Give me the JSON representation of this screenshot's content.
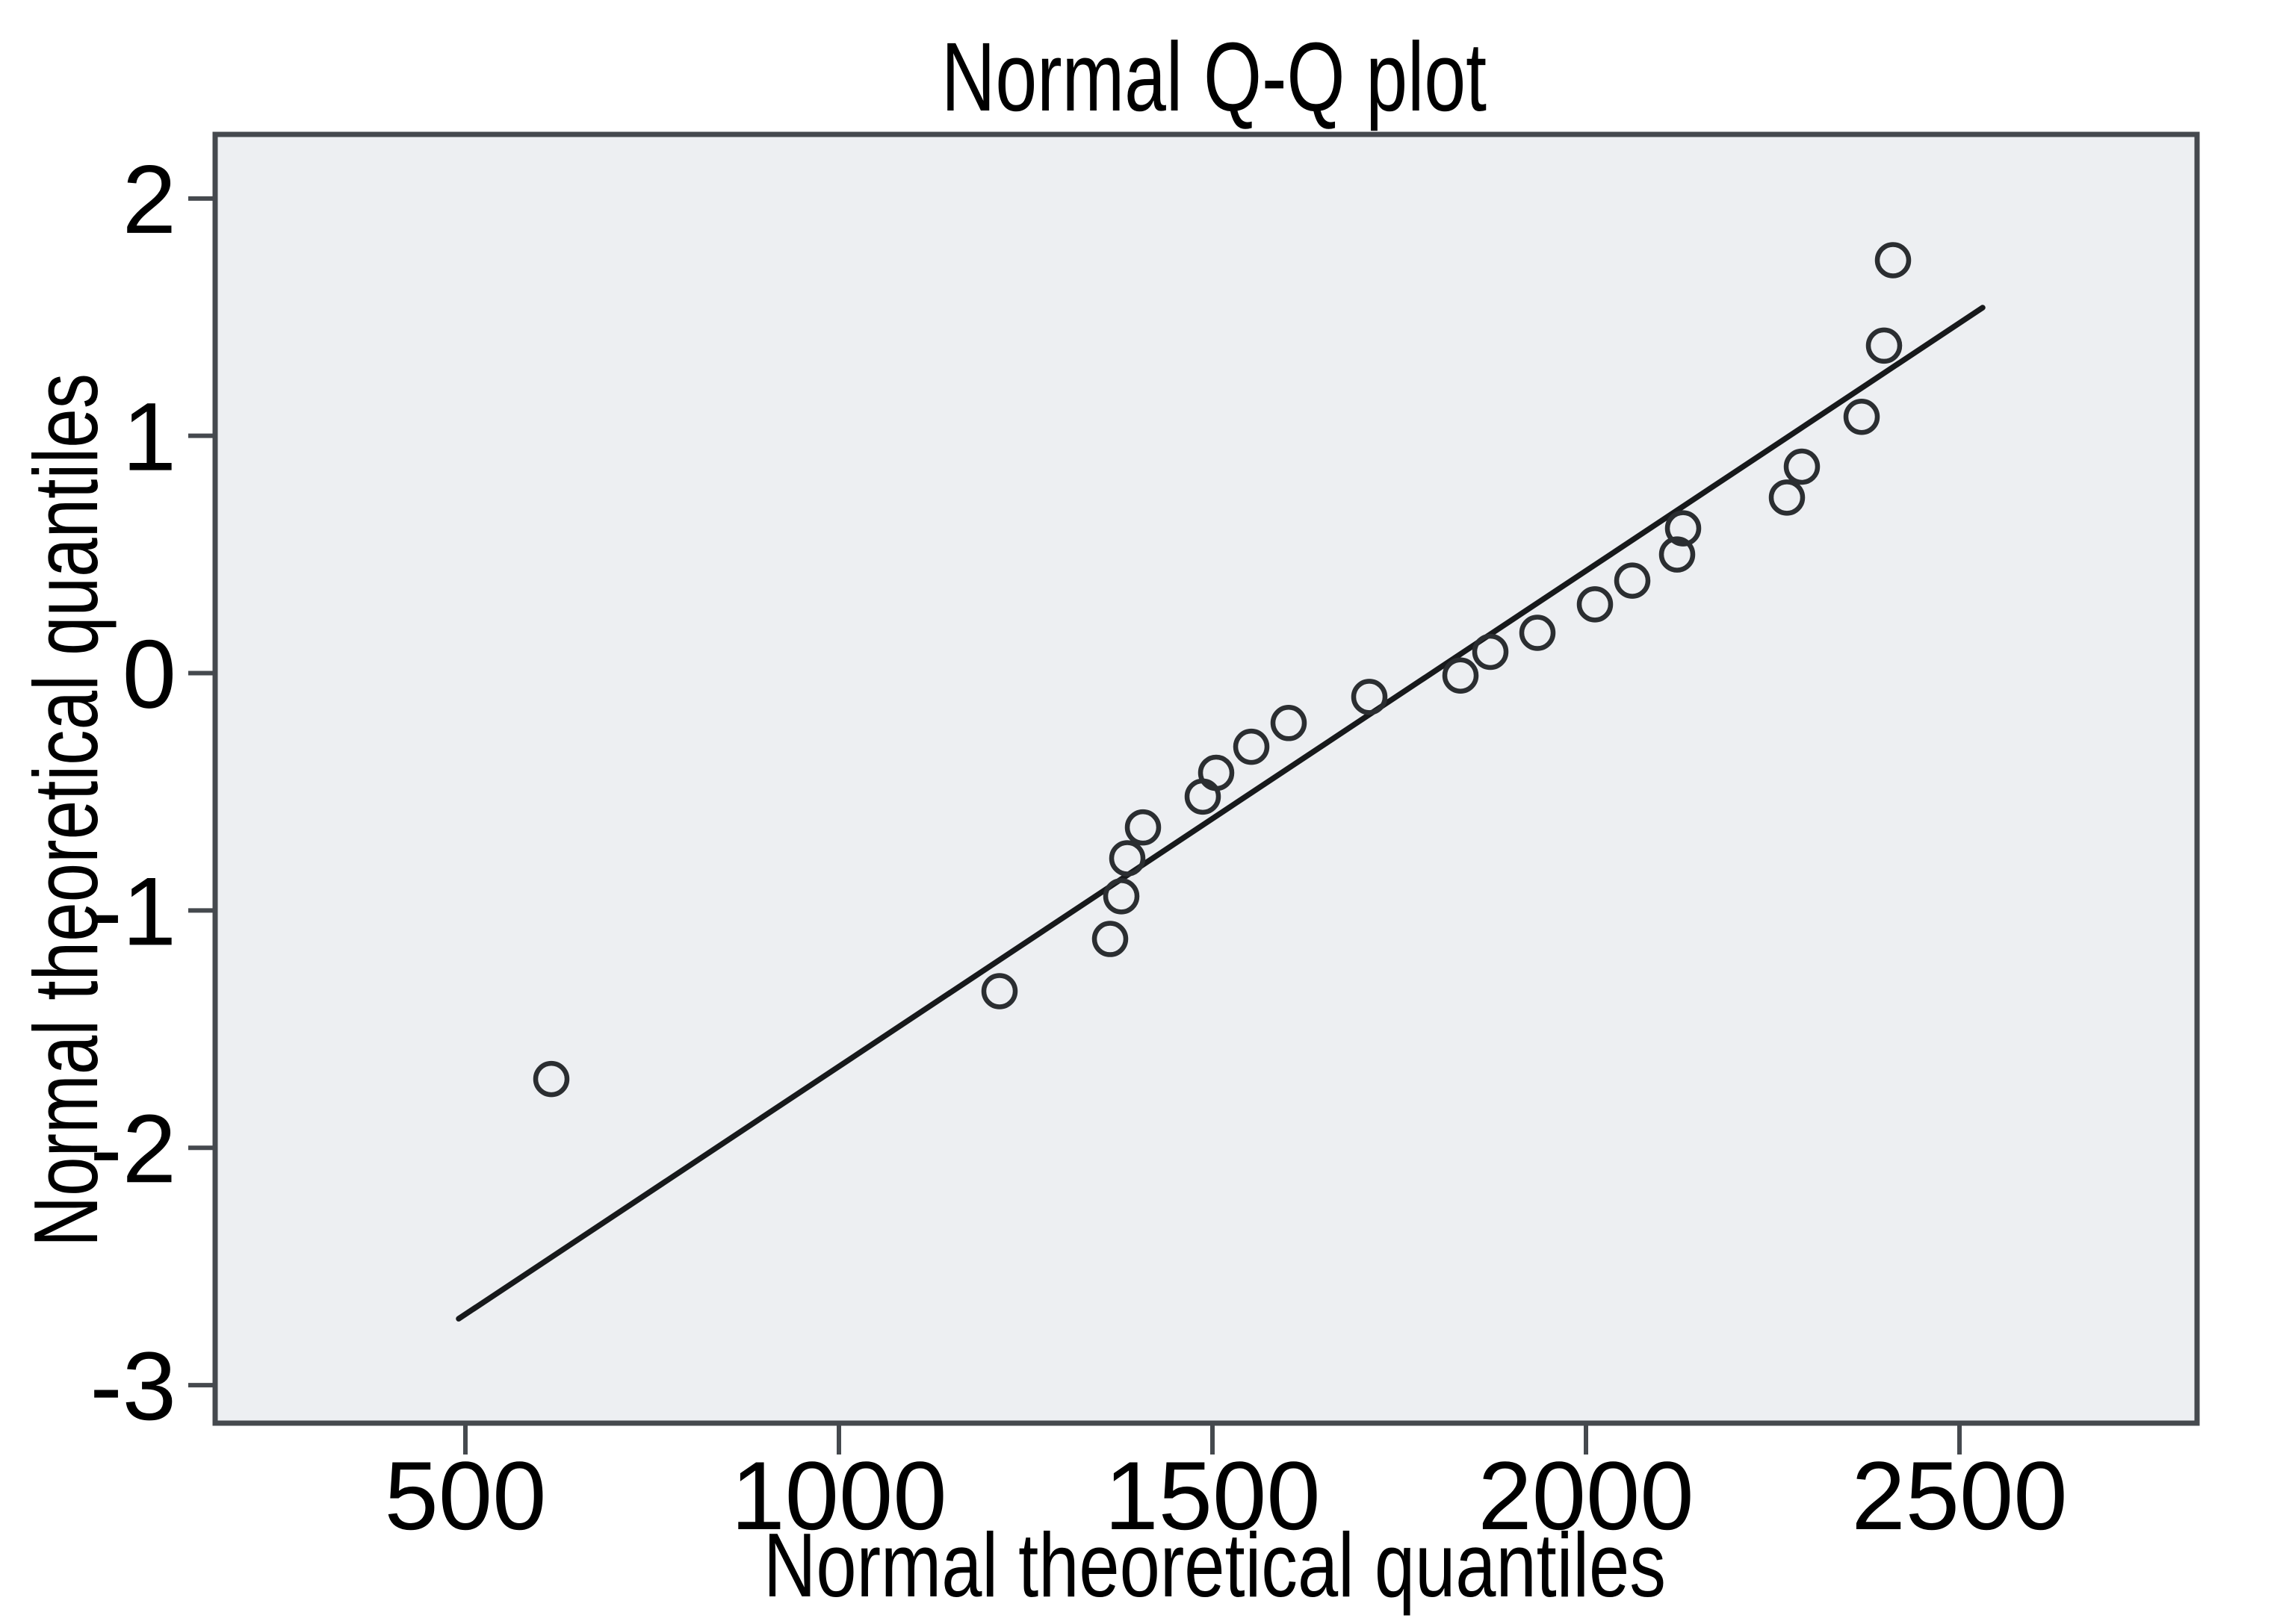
{
  "title": "Normal Q-Q plot",
  "chart_data": {
    "type": "scatter",
    "title": "Normal Q-Q plot",
    "xlabel": "Normal theoretical quantiles",
    "ylabel": "Normal theoretical quantiles",
    "xlim": [
      165,
      2818
    ],
    "ylim": [
      -3.16,
      2.27
    ],
    "x_ticks": [
      500,
      1000,
      1500,
      2000,
      2500
    ],
    "y_ticks": [
      2,
      1,
      0,
      -1,
      -2,
      -3
    ],
    "grid": false,
    "legend": "none",
    "marker": "open-circle",
    "points": [
      [
        615,
        -1.71
      ],
      [
        1215,
        -1.34
      ],
      [
        1363,
        -1.12
      ],
      [
        1378,
        -0.94
      ],
      [
        1386,
        -0.78
      ],
      [
        1407,
        -0.65
      ],
      [
        1487,
        -0.52
      ],
      [
        1505,
        -0.42
      ],
      [
        1552,
        -0.31
      ],
      [
        1602,
        -0.21
      ],
      [
        1710,
        -0.1
      ],
      [
        1832,
        -0.01
      ],
      [
        1872,
        0.09
      ],
      [
        1935,
        0.17
      ],
      [
        2012,
        0.29
      ],
      [
        2062,
        0.39
      ],
      [
        2122,
        0.5
      ],
      [
        2130,
        0.61
      ],
      [
        2269,
        0.74
      ],
      [
        2289,
        0.87
      ],
      [
        2369,
        1.08
      ],
      [
        2399,
        1.38
      ],
      [
        2411,
        1.74
      ]
    ],
    "reference_line": {
      "x1": 491,
      "y1": -2.72,
      "x2": 2531,
      "y2": 1.54
    },
    "colors": {
      "page_background": "#ffffff",
      "plot_background": "#edeff2",
      "frame": "#45494e",
      "tick": "#45494e",
      "text": "#000000",
      "line": "#17191b",
      "marker": "#2b2e31"
    }
  }
}
